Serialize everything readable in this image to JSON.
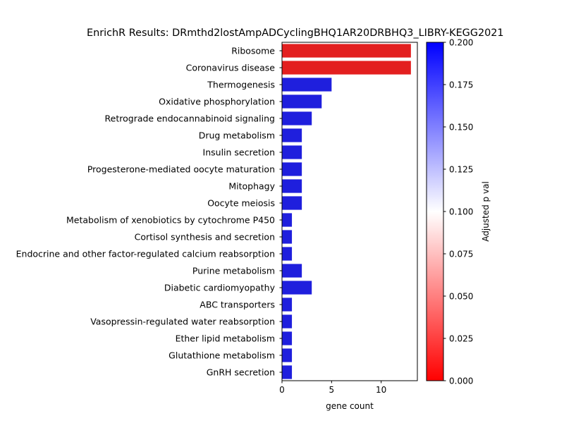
{
  "chart_data": {
    "type": "bar",
    "orientation": "horizontal",
    "title": "EnrichR Results: DRmthd2lostAmpADCyclingBHQ1AR20DRBHQ3_LIBRY-KEGG2021",
    "xlabel": "gene count",
    "ylabel": "",
    "xlim": [
      0,
      13.65
    ],
    "xticks": [
      0,
      5,
      10
    ],
    "categories": [
      "Ribosome",
      "Coronavirus disease",
      "Thermogenesis",
      "Oxidative phosphorylation",
      "Retrograde endocannabinoid signaling",
      "Drug metabolism",
      "Insulin secretion",
      "Progesterone-mediated oocyte maturation",
      "Mitophagy",
      "Oocyte meiosis",
      "Metabolism of xenobiotics by cytochrome P450",
      "Cortisol synthesis and secretion",
      "Endocrine and other factor-regulated calcium reabsorption",
      "Purine metabolism",
      "Diabetic cardiomyopathy",
      "ABC transporters",
      "Vasopressin-regulated water reabsorption",
      "Ether lipid metabolism",
      "Glutathione metabolism",
      "GnRH secretion"
    ],
    "values": [
      13,
      13,
      5,
      4,
      3,
      2,
      2,
      2,
      2,
      2,
      1,
      1,
      1,
      2,
      3,
      1,
      1,
      1,
      1,
      1
    ],
    "adjusted_p": [
      0.005,
      0.005,
      0.2,
      0.2,
      0.2,
      0.2,
      0.2,
      0.2,
      0.2,
      0.2,
      0.2,
      0.2,
      0.2,
      0.2,
      0.2,
      0.2,
      0.2,
      0.2,
      0.2,
      0.2
    ],
    "colorbar": {
      "label": "Adjusted p val",
      "range": [
        0,
        0.2
      ],
      "ticks": [
        "0.000",
        "0.025",
        "0.050",
        "0.075",
        "0.100",
        "0.125",
        "0.150",
        "0.175",
        "0.200"
      ],
      "colors": [
        "#ff0000",
        "#ffffff",
        "#0000ff"
      ]
    }
  }
}
